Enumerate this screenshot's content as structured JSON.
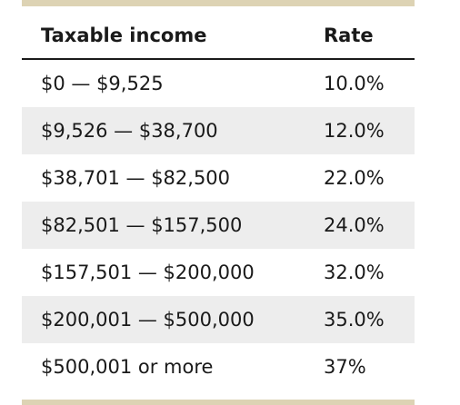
{
  "table": {
    "headers": {
      "income": "Taxable income",
      "rate": "Rate"
    },
    "rows": [
      {
        "income": "$0 — $9,525",
        "rate": "10.0%"
      },
      {
        "income": "$9,526 — $38,700",
        "rate": "12.0%"
      },
      {
        "income": "$38,701 — $82,500",
        "rate": "22.0%"
      },
      {
        "income": "$82,501 — $157,500",
        "rate": "24.0%"
      },
      {
        "income": "$157,501 — $200,000",
        "rate": "32.0%"
      },
      {
        "income": "$200,001 — $500,000",
        "rate": "35.0%"
      },
      {
        "income": "$500,001 or more",
        "rate": "37%"
      }
    ]
  },
  "colors": {
    "accent_bar": "#ddd3b4",
    "shaded_row": "#ededed",
    "text": "#1a1a1a"
  }
}
